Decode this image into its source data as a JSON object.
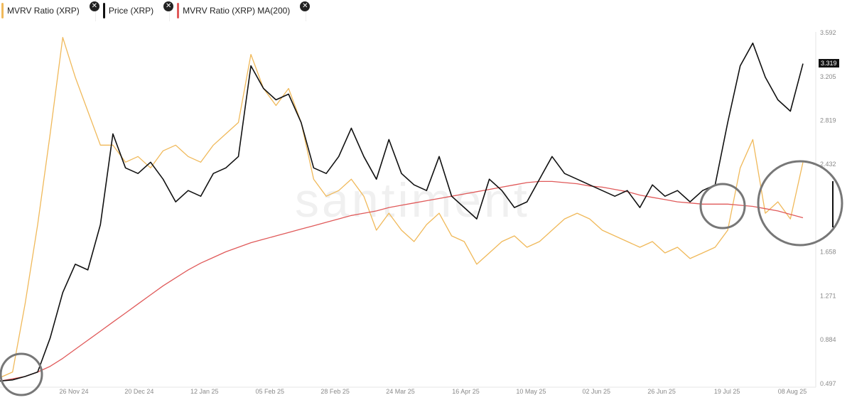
{
  "legend": {
    "items": [
      {
        "label": "MVRV Ratio (XRP)",
        "color": "#f0b95a"
      },
      {
        "label": "Price (XRP)",
        "color": "#111111"
      },
      {
        "label": "MVRV Ratio (XRP) MA(200)",
        "color": "#e05a5a"
      }
    ],
    "close_glyph": "✕"
  },
  "watermark": "santiment",
  "price_tag": "3.319",
  "chart_data": {
    "type": "line",
    "x_ticks": [
      "26 Nov 24",
      "20 Dec 24",
      "12 Jan 25",
      "05 Feb 25",
      "28 Feb 25",
      "24 Mar 25",
      "16 Apr 25",
      "10 May 25",
      "02 Jun 25",
      "26 Jun 25",
      "19 Jul 25",
      "08 Aug 25"
    ],
    "y_ticks": [
      "3.592",
      "3.205",
      "2.819",
      "2.432",
      "1.658",
      "1.271",
      "0.884",
      "0.497"
    ],
    "ylim": [
      0.497,
      3.592
    ],
    "series": [
      {
        "name": "Price (XRP)",
        "color": "#111111",
        "values": [
          0.52,
          0.53,
          0.56,
          0.6,
          0.9,
          1.3,
          1.55,
          1.5,
          1.9,
          2.7,
          2.4,
          2.35,
          2.45,
          2.3,
          2.1,
          2.2,
          2.15,
          2.35,
          2.4,
          2.5,
          3.3,
          3.1,
          3.0,
          3.05,
          2.8,
          2.4,
          2.35,
          2.5,
          2.75,
          2.5,
          2.3,
          2.65,
          2.35,
          2.25,
          2.2,
          2.5,
          2.15,
          2.05,
          1.95,
          2.3,
          2.2,
          2.05,
          2.1,
          2.3,
          2.5,
          2.35,
          2.3,
          2.25,
          2.2,
          2.15,
          2.2,
          2.05,
          2.25,
          2.15,
          2.2,
          2.1,
          2.2,
          2.25,
          2.8,
          3.3,
          3.5,
          3.2,
          3.0,
          2.9,
          3.319
        ]
      },
      {
        "name": "MVRV Ratio (XRP)",
        "color": "#f0b95a",
        "values": [
          0.55,
          0.6,
          1.2,
          1.9,
          2.7,
          3.55,
          3.2,
          2.9,
          2.6,
          2.6,
          2.45,
          2.5,
          2.4,
          2.55,
          2.6,
          2.5,
          2.45,
          2.6,
          2.7,
          2.8,
          3.4,
          3.1,
          2.95,
          3.1,
          2.8,
          2.3,
          2.15,
          2.2,
          2.3,
          2.15,
          1.85,
          2.0,
          1.85,
          1.75,
          1.9,
          2.0,
          1.8,
          1.75,
          1.55,
          1.65,
          1.75,
          1.8,
          1.7,
          1.75,
          1.85,
          1.95,
          2.0,
          1.95,
          1.85,
          1.8,
          1.75,
          1.7,
          1.75,
          1.65,
          1.7,
          1.6,
          1.65,
          1.7,
          1.85,
          2.4,
          2.65,
          2.0,
          2.1,
          1.95,
          2.45
        ]
      },
      {
        "name": "MVRV Ratio (XRP) MA(200)",
        "color": "#e05a5a",
        "values": [
          0.52,
          0.54,
          0.56,
          0.6,
          0.65,
          0.72,
          0.8,
          0.88,
          0.96,
          1.04,
          1.12,
          1.2,
          1.28,
          1.36,
          1.43,
          1.5,
          1.56,
          1.61,
          1.66,
          1.7,
          1.74,
          1.77,
          1.8,
          1.83,
          1.86,
          1.89,
          1.92,
          1.95,
          1.98,
          2.0,
          2.02,
          2.05,
          2.07,
          2.09,
          2.11,
          2.13,
          2.15,
          2.17,
          2.19,
          2.21,
          2.23,
          2.25,
          2.27,
          2.28,
          2.28,
          2.27,
          2.26,
          2.24,
          2.23,
          2.21,
          2.19,
          2.16,
          2.14,
          2.12,
          2.1,
          2.09,
          2.08,
          2.08,
          2.08,
          2.07,
          2.06,
          2.04,
          2.02,
          1.99,
          1.96
        ]
      }
    ],
    "highlight_circles": 3,
    "grid": false,
    "legend_position": "top-left"
  }
}
